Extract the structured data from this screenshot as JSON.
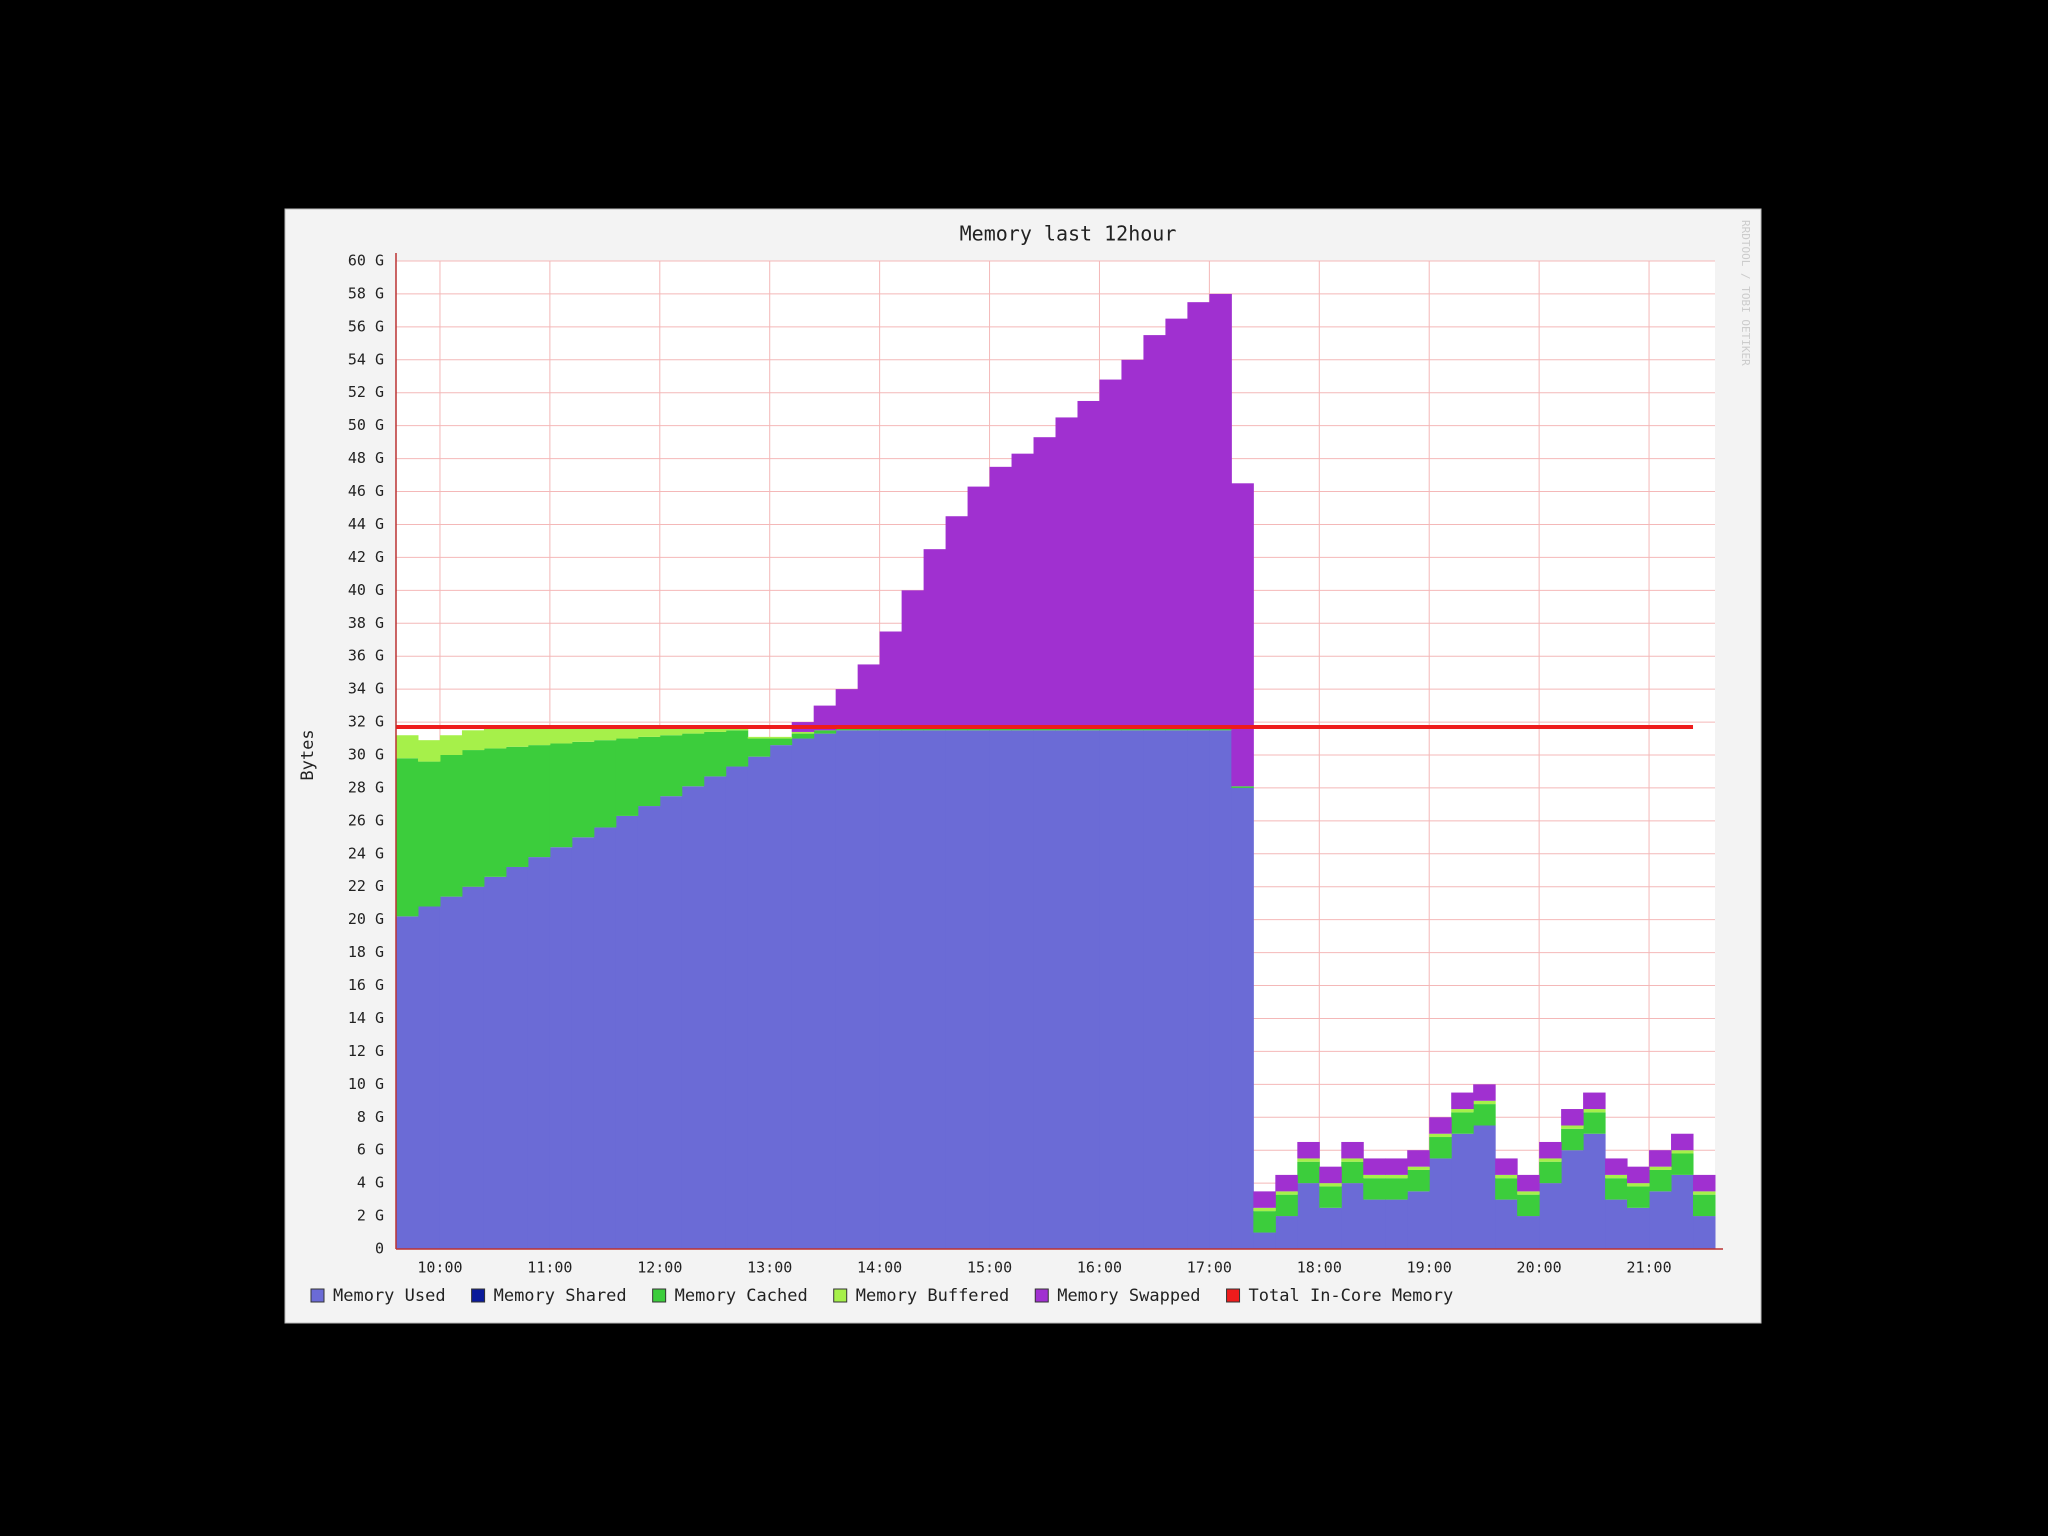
{
  "chart_data": {
    "type": "stacked-step-area",
    "title": "Memory last 12hour",
    "y_label": "Bytes",
    "watermark": "RRDTOOL / TOBI OETIKER",
    "x": [
      9.6,
      9.8,
      10.0,
      10.2,
      10.4,
      10.6,
      10.8,
      11.0,
      11.2,
      11.4,
      11.6,
      11.8,
      12.0,
      12.2,
      12.4,
      12.6,
      12.8,
      13.0,
      13.2,
      13.4,
      13.6,
      13.8,
      14.0,
      14.2,
      14.4,
      14.6,
      14.8,
      15.0,
      15.2,
      15.4,
      15.6,
      15.8,
      16.0,
      16.2,
      16.4,
      16.6,
      16.8,
      17.0,
      17.2,
      17.4,
      17.6,
      17.8,
      18.0,
      18.2,
      18.4,
      18.6,
      18.8,
      19.0,
      19.2,
      19.4,
      19.6,
      19.8,
      20.0,
      20.2,
      20.4,
      20.6,
      20.8,
      21.0,
      21.2,
      21.4
    ],
    "xlim": [
      9.6,
      21.6
    ],
    "xticks": [
      {
        "value": 10,
        "label": "10:00"
      },
      {
        "value": 11,
        "label": "11:00"
      },
      {
        "value": 12,
        "label": "12:00"
      },
      {
        "value": 13,
        "label": "13:00"
      },
      {
        "value": 14,
        "label": "14:00"
      },
      {
        "value": 15,
        "label": "15:00"
      },
      {
        "value": 16,
        "label": "16:00"
      },
      {
        "value": 17,
        "label": "17:00"
      },
      {
        "value": 18,
        "label": "18:00"
      },
      {
        "value": 19,
        "label": "19:00"
      },
      {
        "value": 20,
        "label": "20:00"
      },
      {
        "value": 21,
        "label": "21:00"
      }
    ],
    "ylim": [
      0,
      60
    ],
    "yticks": [
      0,
      {
        "value": 2,
        "label": "2 G"
      },
      {
        "value": 4,
        "label": "4 G"
      },
      {
        "value": 6,
        "label": "6 G"
      },
      {
        "value": 8,
        "label": "8 G"
      },
      {
        "value": 10,
        "label": "10 G"
      },
      {
        "value": 12,
        "label": "12 G"
      },
      {
        "value": 14,
        "label": "14 G"
      },
      {
        "value": 16,
        "label": "16 G"
      },
      {
        "value": 18,
        "label": "18 G"
      },
      {
        "value": 20,
        "label": "20 G"
      },
      {
        "value": 22,
        "label": "22 G"
      },
      {
        "value": 24,
        "label": "24 G"
      },
      {
        "value": 26,
        "label": "26 G"
      },
      {
        "value": 28,
        "label": "28 G"
      },
      {
        "value": 30,
        "label": "30 G"
      },
      {
        "value": 32,
        "label": "32 G"
      },
      {
        "value": 34,
        "label": "34 G"
      },
      {
        "value": 36,
        "label": "36 G"
      },
      {
        "value": 38,
        "label": "38 G"
      },
      {
        "value": 40,
        "label": "40 G"
      },
      {
        "value": 42,
        "label": "42 G"
      },
      {
        "value": 44,
        "label": "44 G"
      },
      {
        "value": 46,
        "label": "46 G"
      },
      {
        "value": 48,
        "label": "48 G"
      },
      {
        "value": 50,
        "label": "50 G"
      },
      {
        "value": 52,
        "label": "52 G"
      },
      {
        "value": 54,
        "label": "54 G"
      },
      {
        "value": 56,
        "label": "56 G"
      },
      {
        "value": 58,
        "label": "58 G"
      },
      {
        "value": 60,
        "label": "60 G"
      }
    ],
    "grid": true,
    "series": [
      {
        "name": "Memory Used",
        "color": "#6b6bd6",
        "values": [
          20.2,
          20.8,
          21.4,
          22.0,
          22.6,
          23.2,
          23.8,
          24.4,
          25.0,
          25.6,
          26.3,
          26.9,
          27.5,
          28.1,
          28.7,
          29.3,
          29.9,
          30.6,
          31.0,
          31.3,
          31.5,
          31.5,
          31.5,
          31.5,
          31.5,
          31.5,
          31.5,
          31.5,
          31.5,
          31.5,
          31.5,
          31.5,
          31.5,
          31.5,
          31.5,
          31.5,
          31.5,
          31.5,
          28.0,
          1.0,
          2.0,
          4.0,
          2.5,
          4.0,
          3.0,
          3.0,
          3.5,
          5.5,
          7.0,
          7.5,
          3.0,
          2.0,
          4.0,
          6.0,
          7.0,
          3.0,
          2.5,
          3.5,
          4.5,
          2.0
        ]
      },
      {
        "name": "Memory Shared",
        "color": "#0a1a9a",
        "values": [
          0,
          0,
          0,
          0,
          0,
          0,
          0,
          0,
          0,
          0,
          0,
          0,
          0,
          0,
          0,
          0,
          0,
          0,
          0,
          0,
          0,
          0,
          0,
          0,
          0,
          0,
          0,
          0,
          0,
          0,
          0,
          0,
          0,
          0,
          0,
          0,
          0,
          0,
          0,
          0,
          0,
          0,
          0,
          0,
          0,
          0,
          0,
          0,
          0,
          0,
          0,
          0,
          0,
          0,
          0,
          0,
          0,
          0,
          0,
          0
        ]
      },
      {
        "name": "Memory Cached",
        "color": "#3ccd3c",
        "values": [
          9.6,
          8.8,
          8.6,
          8.3,
          7.8,
          7.3,
          6.8,
          6.3,
          5.8,
          5.3,
          4.7,
          4.2,
          3.7,
          3.2,
          2.7,
          2.2,
          1.1,
          0.4,
          0.3,
          0.2,
          0.1,
          0.1,
          0.1,
          0.1,
          0.1,
          0.1,
          0.1,
          0.1,
          0.1,
          0.1,
          0.1,
          0.1,
          0.1,
          0.1,
          0.1,
          0.1,
          0.1,
          0.1,
          0.1,
          1.3,
          1.3,
          1.3,
          1.3,
          1.3,
          1.3,
          1.3,
          1.3,
          1.3,
          1.3,
          1.3,
          1.3,
          1.3,
          1.3,
          1.3,
          1.3,
          1.3,
          1.3,
          1.3,
          1.3,
          1.3
        ]
      },
      {
        "name": "Memory Buffered",
        "color": "#a6f04a",
        "values": [
          1.4,
          1.3,
          1.2,
          1.2,
          1.2,
          1.1,
          1.0,
          0.9,
          0.8,
          0.7,
          0.6,
          0.5,
          0.4,
          0.3,
          0.2,
          0.1,
          0.1,
          0.1,
          0.1,
          0,
          0,
          0,
          0,
          0,
          0,
          0,
          0,
          0,
          0,
          0,
          0,
          0,
          0,
          0,
          0,
          0,
          0,
          0,
          0,
          0.2,
          0.2,
          0.2,
          0.2,
          0.2,
          0.2,
          0.2,
          0.2,
          0.2,
          0.2,
          0.2,
          0.2,
          0.2,
          0.2,
          0.2,
          0.2,
          0.2,
          0.2,
          0.2,
          0.2,
          0.2
        ]
      },
      {
        "name": "Memory Swapped",
        "color": "#a030d0",
        "values": [
          0,
          0,
          0,
          0,
          0,
          0,
          0,
          0,
          0,
          0,
          0,
          0,
          0,
          0,
          0,
          0,
          0,
          0,
          0.6,
          1.5,
          2.4,
          3.9,
          5.9,
          8.4,
          10.9,
          12.9,
          14.7,
          15.9,
          16.7,
          17.7,
          18.9,
          19.9,
          21.2,
          22.4,
          23.9,
          24.9,
          25.9,
          26.4,
          18.4,
          1.0,
          1.0,
          1.0,
          1.0,
          1.0,
          1.0,
          1.0,
          1.0,
          1.0,
          1.0,
          1.0,
          1.0,
          1.0,
          1.0,
          1.0,
          1.0,
          1.0,
          1.0,
          1.0,
          1.0,
          1.0
        ]
      },
      {
        "name": "Total In-Core Memory",
        "color": "#ee1c1c",
        "type": "line",
        "values": [
          31.7,
          31.7,
          31.7,
          31.7,
          31.7,
          31.7,
          31.7,
          31.7,
          31.7,
          31.7,
          31.7,
          31.7,
          31.7,
          31.7,
          31.7,
          31.7,
          31.7,
          31.7,
          31.7,
          31.7,
          31.7,
          31.7,
          31.7,
          31.7,
          31.7,
          31.7,
          31.7,
          31.7,
          31.7,
          31.7,
          31.7,
          31.7,
          31.7,
          31.7,
          31.7,
          31.7,
          31.7,
          31.7,
          31.7,
          31.7,
          31.7,
          31.7,
          31.7,
          31.7,
          31.7,
          31.7,
          31.7,
          31.7,
          31.7,
          31.7,
          31.7,
          31.7,
          31.7,
          31.7,
          31.7,
          31.7,
          31.7,
          31.7,
          31.7,
          31.7
        ]
      }
    ]
  }
}
